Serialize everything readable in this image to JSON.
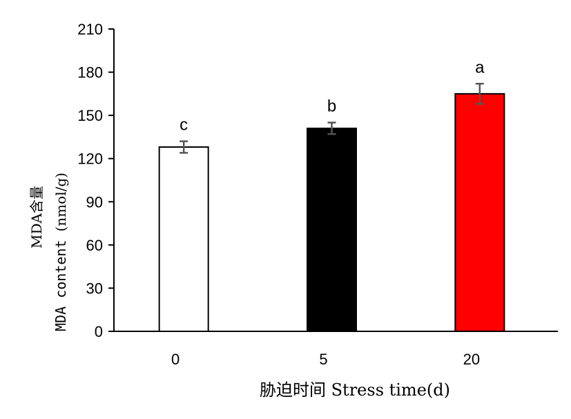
{
  "chart_data": {
    "type": "bar",
    "categories": [
      "0",
      "5",
      "20"
    ],
    "values": [
      128,
      141,
      165
    ],
    "errors": [
      4,
      4,
      7
    ],
    "significance_letters": [
      "c",
      "b",
      "a"
    ],
    "bar_colors": [
      "#ffffff",
      "#000000",
      "#ff0000"
    ],
    "bar_edge_color": "#000000",
    "error_bar_color": "#555555",
    "ylim": [
      0,
      210
    ],
    "yticks": [
      0,
      30,
      60,
      90,
      120,
      150,
      180,
      210
    ],
    "xlabel": "胁迫时间 Stress time(d)",
    "ylabel": {
      "line1": "MDA含量",
      "line2_prefix": "MDA content ",
      "line2_unit": "(nmol/g)"
    },
    "grid": false,
    "legend": "none"
  }
}
